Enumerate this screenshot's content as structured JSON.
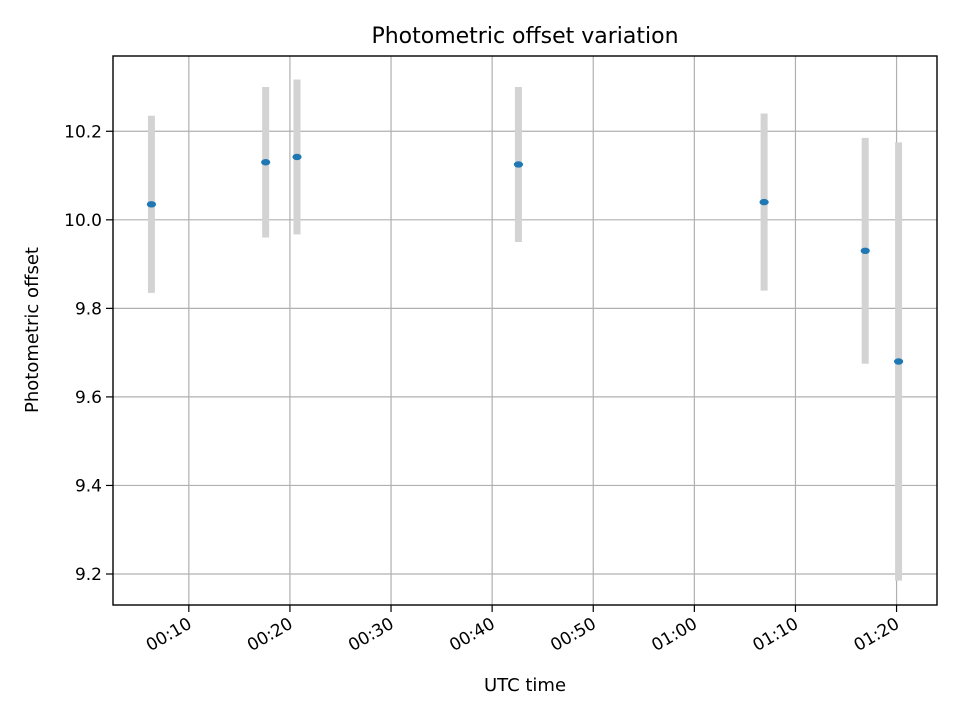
{
  "chart_data": {
    "type": "scatter",
    "title": "Photometric offset variation",
    "xlabel": "UTC time",
    "ylabel": "Photometric offset",
    "x_unit": "HH:MM UTC",
    "xlim": [
      "00:02:30",
      "01:24:00"
    ],
    "ylim": [
      9.13,
      10.37
    ],
    "x_ticks": [
      "00:10",
      "00:20",
      "00:30",
      "00:40",
      "00:50",
      "01:00",
      "01:10",
      "01:20"
    ],
    "y_ticks": [
      9.2,
      9.4,
      9.6,
      9.8,
      10.0,
      10.2
    ],
    "y_tick_labels": [
      "9.2",
      "9.4",
      "9.6",
      "9.8",
      "10.0",
      "10.2"
    ],
    "grid": true,
    "marker_color": "#1f77b4",
    "errorbar_color": "#d3d3d3",
    "points": [
      {
        "x": "00:06:18",
        "y": 10.035,
        "yerr": 0.2
      },
      {
        "x": "00:17:36",
        "y": 10.13,
        "yerr": 0.17
      },
      {
        "x": "00:20:42",
        "y": 10.142,
        "yerr": 0.175
      },
      {
        "x": "00:42:36",
        "y": 10.125,
        "yerr": 0.175
      },
      {
        "x": "01:06:54",
        "y": 10.04,
        "yerr": 0.2
      },
      {
        "x": "01:16:54",
        "y": 9.93,
        "yerr": 0.255
      },
      {
        "x": "01:20:12",
        "y": 9.68,
        "yerr": 0.495
      }
    ]
  }
}
